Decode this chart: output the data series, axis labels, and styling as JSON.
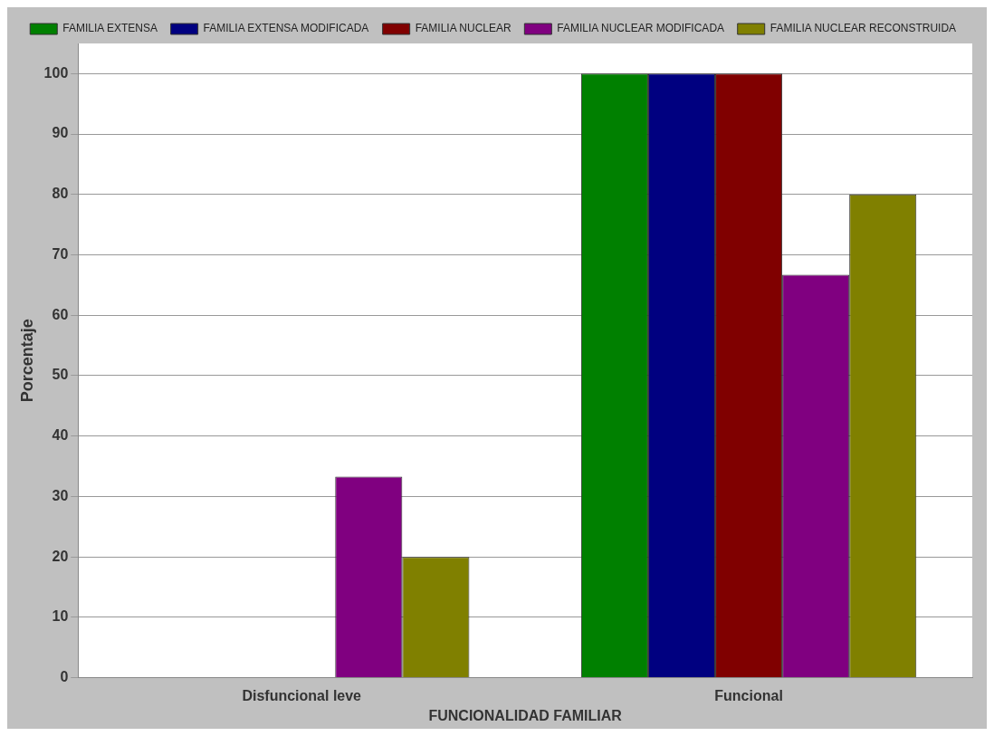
{
  "chart_data": {
    "type": "bar",
    "xlabel": "FUNCIONALIDAD FAMILIAR",
    "ylabel": "Porcentaje",
    "categories": [
      "Disfuncional leve",
      "Funcional"
    ],
    "series": [
      {
        "name": "FAMILIA EXTENSA",
        "color": "#008000",
        "values": [
          0,
          100
        ]
      },
      {
        "name": "FAMILIA EXTENSA MODIFICADA",
        "color": "#000080",
        "values": [
          0,
          100
        ]
      },
      {
        "name": "FAMILIA NUCLEAR",
        "color": "#800000",
        "values": [
          0,
          100
        ]
      },
      {
        "name": "FAMILIA NUCLEAR MODIFICADA",
        "color": "#800080",
        "values": [
          33.3,
          66.7
        ]
      },
      {
        "name": "FAMILIA NUCLEAR RECONSTRUIDA",
        "color": "#808000",
        "values": [
          20,
          80
        ]
      }
    ],
    "ylim": [
      0,
      105
    ],
    "yticks": [
      0,
      10,
      20,
      30,
      40,
      50,
      60,
      70,
      80,
      90,
      100
    ],
    "grid": "y",
    "legend": "top"
  }
}
